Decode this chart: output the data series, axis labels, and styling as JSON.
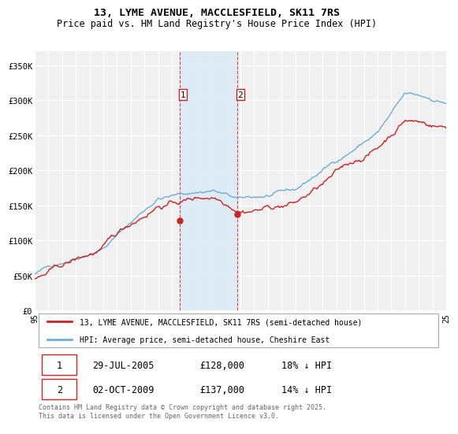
{
  "title_line1": "13, LYME AVENUE, MACCLESFIELD, SK11 7RS",
  "title_line2": "Price paid vs. HM Land Registry's House Price Index (HPI)",
  "xlim_years": [
    1995,
    2025
  ],
  "ylim": [
    0,
    370000
  ],
  "yticks": [
    0,
    50000,
    100000,
    150000,
    200000,
    250000,
    300000,
    350000
  ],
  "ytick_labels": [
    "£0",
    "£50K",
    "£100K",
    "£150K",
    "£200K",
    "£250K",
    "£300K",
    "£350K"
  ],
  "background_color": "#ffffff",
  "plot_bg_color": "#f0f0f0",
  "grid_color": "#ffffff",
  "hpi_color": "#6baed6",
  "price_color": "#cc2222",
  "transaction1_x": 2005.57,
  "transaction1_y": 128000,
  "transaction2_x": 2009.75,
  "transaction2_y": 137000,
  "vline1_x": 2005.57,
  "vline2_x": 2009.75,
  "vline_color": "#cc2222",
  "legend_line1": "13, LYME AVENUE, MACCLESFIELD, SK11 7RS (semi-detached house)",
  "legend_line2": "HPI: Average price, semi-detached house, Cheshire East",
  "table_row1": [
    "1",
    "29-JUL-2005",
    "£128,000",
    "18% ↓ HPI"
  ],
  "table_row2": [
    "2",
    "02-OCT-2009",
    "£137,000",
    "14% ↓ HPI"
  ],
  "footer": "Contains HM Land Registry data © Crown copyright and database right 2025.\nThis data is licensed under the Open Government Licence v3.0."
}
